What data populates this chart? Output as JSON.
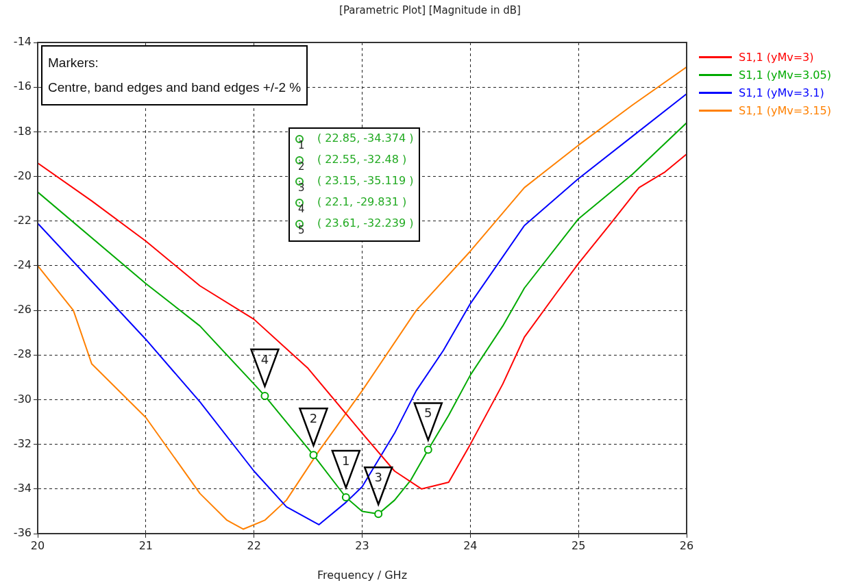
{
  "chart_data": {
    "type": "line",
    "title": "[Parametric Plot] [Magnitude in dB]",
    "xlabel": "Frequency / GHz",
    "xlim": [
      20,
      26
    ],
    "xticks": [
      20,
      21,
      22,
      23,
      24,
      25,
      26
    ],
    "ylim": [
      -36,
      -14
    ],
    "yticks": [
      -36,
      -34,
      -32,
      -30,
      -28,
      -26,
      -24,
      -22,
      -20,
      -18,
      -16,
      -14
    ],
    "grid": true,
    "legend": "top right",
    "marker": "none",
    "line_style": "solid",
    "series": [
      {
        "name": "S1,1 (yMv=3)",
        "color": "#ff0000",
        "x": [
          20,
          20.5,
          21,
          21.5,
          22,
          22.5,
          23,
          23.3,
          23.55,
          23.8,
          24,
          24.3,
          24.5,
          24.8,
          25,
          25.3,
          25.56,
          25.8,
          26
        ],
        "values": [
          -19.4,
          -21.1,
          -22.9,
          -24.9,
          -26.4,
          -28.6,
          -31.5,
          -33.2,
          -34.0,
          -33.7,
          -32.0,
          -29.3,
          -27.2,
          -25.2,
          -23.9,
          -22.1,
          -20.5,
          -19.8,
          -19.0
        ]
      },
      {
        "name": "S1,1 (yMv=3.05)",
        "color": "#00aa00",
        "x": [
          20,
          21,
          21.5,
          22,
          22.1,
          22.55,
          22.85,
          23,
          23.15,
          23.3,
          23.45,
          23.61,
          23.8,
          24,
          24.3,
          24.5,
          25,
          25.5,
          26
        ],
        "values": [
          -20.7,
          -24.8,
          -26.7,
          -29.3,
          -29.831,
          -32.48,
          -34.374,
          -35.0,
          -35.119,
          -34.5,
          -33.6,
          -32.239,
          -30.7,
          -28.9,
          -26.7,
          -25.0,
          -21.9,
          -19.9,
          -17.6
        ]
      },
      {
        "name": "S1,1 (yMv=3.1)",
        "color": "#0000ff",
        "x": [
          20,
          21,
          21.5,
          22,
          22.3,
          22.6,
          22.85,
          23,
          23.3,
          23.5,
          23.75,
          24,
          24.5,
          25,
          25.5,
          26
        ],
        "values": [
          -22.1,
          -27.3,
          -30.1,
          -33.2,
          -34.8,
          -35.6,
          -34.6,
          -33.9,
          -31.5,
          -29.6,
          -27.8,
          -25.7,
          -22.2,
          -20.1,
          -18.2,
          -16.3
        ]
      },
      {
        "name": "S1,1 (yMv=3.15)",
        "color": "#ff8000",
        "x": [
          20,
          20.33,
          20.5,
          21,
          21.5,
          21.75,
          21.9,
          22.1,
          22.3,
          22.6,
          23,
          23.5,
          24,
          24.5,
          25,
          25.5,
          26
        ],
        "values": [
          -24.0,
          -26.0,
          -28.4,
          -30.8,
          -34.2,
          -35.4,
          -35.8,
          -35.4,
          -34.5,
          -32.3,
          -29.6,
          -26.0,
          -23.35,
          -20.5,
          -18.6,
          -16.8,
          -15.1
        ]
      },
      {
        "type": "scatter",
        "marker": "circle",
        "color": "#00aa00",
        "x": [
          22.85,
          22.55,
          23.15,
          22.1,
          23.61
        ],
        "values": [
          -34.374,
          -32.48,
          -35.119,
          -29.831,
          -32.239
        ]
      }
    ],
    "annotations": [
      "Markers:",
      "Centre, band edges and band edges +/-2 %",
      "( 22.85, -34.374 )",
      "( 22.55, -32.48 )",
      "( 23.15, -35.119 )",
      "( 22.1, -29.831 )",
      "( 23.61, -32.239 )",
      {
        "text": "1",
        "x": 22.85,
        "y": -34.374
      },
      {
        "text": "2",
        "x": 22.55,
        "y": -32.48
      },
      {
        "text": "3",
        "x": 23.15,
        "y": -35.119
      },
      {
        "text": "4",
        "x": 22.1,
        "y": -29.831
      },
      {
        "text": "5",
        "x": 23.61,
        "y": -32.239
      }
    ]
  }
}
